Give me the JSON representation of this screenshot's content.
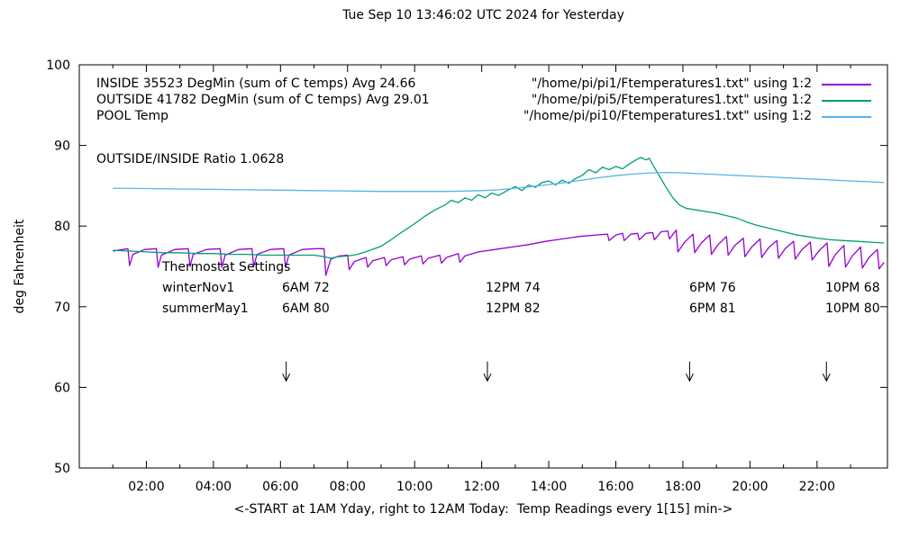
{
  "annotations": {
    "ratio": "OUTSIDE/INSIDE Ratio 1.0628"
  },
  "legend": {
    "rows": [
      {
        "label": "INSIDE 35523 DegMin (sum of C temps) Avg 24.66",
        "file": "\"/home/pi/pi1/Ftemperatures1.txt\" using 1:2",
        "color": "#9400d3"
      },
      {
        "label": "OUTSIDE 41782 DegMin (sum of C temps) Avg 29.01",
        "file": "\"/home/pi/pi5/Ftemperatures1.txt\" using 1:2",
        "color": "#009e73"
      },
      {
        "label": "POOL Temp",
        "file": "\"/home/pi/pi10/Ftemperatures1.txt\" using 1:2",
        "color": "#56b4e9"
      }
    ]
  },
  "thermostat": {
    "title": "Thermostat Settings",
    "rows": [
      {
        "name": "winterNov1",
        "settings": [
          "6AM 72",
          "12PM 74",
          "6PM 76",
          "10PM 68"
        ]
      },
      {
        "name": "summerMay1",
        "settings": [
          "6AM 80",
          "12PM 82",
          "6PM 81",
          "10PM 80"
        ]
      }
    ]
  },
  "chart_data": {
    "type": "line",
    "title": "Tue Sep 10 13:46:02 UTC 2024 for Yesterday",
    "xlabel": "<-START at 1AM Yday, right to 12AM Today:  Temp Readings every 1[15] min->",
    "ylabel": "deg Fahrenheit",
    "xlim": [
      0,
      24.1
    ],
    "ylim": [
      50,
      100
    ],
    "grid": false,
    "legend_position": "top-inside",
    "x_ticks": [
      {
        "value": 2,
        "label": "02:00"
      },
      {
        "value": 4,
        "label": "04:00"
      },
      {
        "value": 6,
        "label": "06:00"
      },
      {
        "value": 8,
        "label": "08:00"
      },
      {
        "value": 10,
        "label": "10:00"
      },
      {
        "value": 12,
        "label": "12:00"
      },
      {
        "value": 14,
        "label": "14:00"
      },
      {
        "value": 16,
        "label": "16:00"
      },
      {
        "value": 18,
        "label": "18:00"
      },
      {
        "value": 20,
        "label": "20:00"
      },
      {
        "value": 22,
        "label": "22:00"
      }
    ],
    "x_minor_ticks": [
      1,
      3,
      5,
      7,
      9,
      11,
      13,
      15,
      17,
      19,
      21,
      23
    ],
    "y_ticks": [
      {
        "value": 50,
        "label": "50"
      },
      {
        "value": 60,
        "label": "60"
      },
      {
        "value": 70,
        "label": "70"
      },
      {
        "value": 80,
        "label": "80"
      },
      {
        "value": 90,
        "label": "90"
      },
      {
        "value": 100,
        "label": "100"
      }
    ],
    "arrows": {
      "x": [
        6.17,
        12.17,
        18.2,
        22.28
      ],
      "from_f": 63.2,
      "to_f": 60.8
    },
    "series": [
      {
        "name": "INSIDE",
        "color": "#9400d3",
        "points": [
          [
            1.0,
            76.9
          ],
          [
            1.45,
            77.2
          ],
          [
            1.5,
            75.1
          ],
          [
            1.6,
            76.5
          ],
          [
            1.95,
            77.1
          ],
          [
            2.3,
            77.2
          ],
          [
            2.35,
            74.9
          ],
          [
            2.45,
            76.4
          ],
          [
            2.85,
            77.1
          ],
          [
            3.25,
            77.2
          ],
          [
            3.3,
            75.0
          ],
          [
            3.4,
            76.5
          ],
          [
            3.8,
            77.1
          ],
          [
            4.2,
            77.2
          ],
          [
            4.25,
            74.9
          ],
          [
            4.35,
            76.4
          ],
          [
            4.75,
            77.1
          ],
          [
            5.15,
            77.2
          ],
          [
            5.2,
            75.0
          ],
          [
            5.3,
            76.5
          ],
          [
            5.7,
            77.1
          ],
          [
            6.1,
            77.2
          ],
          [
            6.15,
            74.9
          ],
          [
            6.25,
            76.4
          ],
          [
            6.65,
            77.1
          ],
          [
            7.05,
            77.2
          ],
          [
            7.3,
            77.2
          ],
          [
            7.35,
            73.9
          ],
          [
            7.5,
            75.9
          ],
          [
            7.75,
            76.3
          ],
          [
            8.0,
            76.4
          ],
          [
            8.05,
            74.6
          ],
          [
            8.2,
            75.6
          ],
          [
            8.55,
            76.1
          ],
          [
            8.6,
            74.9
          ],
          [
            8.75,
            75.7
          ],
          [
            9.1,
            76.1
          ],
          [
            9.15,
            75.1
          ],
          [
            9.3,
            75.8
          ],
          [
            9.65,
            76.2
          ],
          [
            9.7,
            75.2
          ],
          [
            9.85,
            75.9
          ],
          [
            10.2,
            76.3
          ],
          [
            10.25,
            75.3
          ],
          [
            10.4,
            76.0
          ],
          [
            10.75,
            76.4
          ],
          [
            10.8,
            75.4
          ],
          [
            10.95,
            76.1
          ],
          [
            11.3,
            76.6
          ],
          [
            11.35,
            75.5
          ],
          [
            11.5,
            76.3
          ],
          [
            11.9,
            76.8
          ],
          [
            12.4,
            77.1
          ],
          [
            12.9,
            77.4
          ],
          [
            13.4,
            77.7
          ],
          [
            13.9,
            78.1
          ],
          [
            14.4,
            78.4
          ],
          [
            14.9,
            78.7
          ],
          [
            15.4,
            78.9
          ],
          [
            15.75,
            79.0
          ],
          [
            15.8,
            78.2
          ],
          [
            16.0,
            78.9
          ],
          [
            16.2,
            79.1
          ],
          [
            16.25,
            78.2
          ],
          [
            16.45,
            79.0
          ],
          [
            16.65,
            79.1
          ],
          [
            16.7,
            78.3
          ],
          [
            16.9,
            79.1
          ],
          [
            17.1,
            79.2
          ],
          [
            17.15,
            78.3
          ],
          [
            17.35,
            79.3
          ],
          [
            17.55,
            79.4
          ],
          [
            17.6,
            78.4
          ],
          [
            17.8,
            79.5
          ],
          [
            17.85,
            76.8
          ],
          [
            18.05,
            78.0
          ],
          [
            18.3,
            79.0
          ],
          [
            18.35,
            76.7
          ],
          [
            18.55,
            77.9
          ],
          [
            18.8,
            78.9
          ],
          [
            18.85,
            76.5
          ],
          [
            19.05,
            77.7
          ],
          [
            19.3,
            78.7
          ],
          [
            19.35,
            76.4
          ],
          [
            19.55,
            77.6
          ],
          [
            19.8,
            78.5
          ],
          [
            19.85,
            76.2
          ],
          [
            20.05,
            77.4
          ],
          [
            20.3,
            78.4
          ],
          [
            20.35,
            76.1
          ],
          [
            20.55,
            77.3
          ],
          [
            20.8,
            78.2
          ],
          [
            20.85,
            76.0
          ],
          [
            21.05,
            77.2
          ],
          [
            21.3,
            78.1
          ],
          [
            21.35,
            75.9
          ],
          [
            21.55,
            77.1
          ],
          [
            21.8,
            78.0
          ],
          [
            21.85,
            75.8
          ],
          [
            22.05,
            76.9
          ],
          [
            22.3,
            77.9
          ],
          [
            22.35,
            75.0
          ],
          [
            22.55,
            76.5
          ],
          [
            22.8,
            77.6
          ],
          [
            22.85,
            74.9
          ],
          [
            23.05,
            76.3
          ],
          [
            23.3,
            77.4
          ],
          [
            23.35,
            74.8
          ],
          [
            23.55,
            76.1
          ],
          [
            23.8,
            77.1
          ],
          [
            23.85,
            74.7
          ],
          [
            24.0,
            75.5
          ]
        ]
      },
      {
        "name": "OUTSIDE",
        "color": "#009e73",
        "points": [
          [
            1.0,
            77.0
          ],
          [
            1.5,
            76.9
          ],
          [
            2.0,
            76.8
          ],
          [
            2.5,
            76.7
          ],
          [
            3.0,
            76.7
          ],
          [
            3.5,
            76.6
          ],
          [
            4.0,
            76.6
          ],
          [
            4.5,
            76.5
          ],
          [
            5.0,
            76.5
          ],
          [
            5.5,
            76.4
          ],
          [
            6.0,
            76.4
          ],
          [
            6.5,
            76.4
          ],
          [
            7.0,
            76.4
          ],
          [
            7.3,
            76.2
          ],
          [
            7.5,
            76.0
          ],
          [
            7.7,
            76.2
          ],
          [
            8.0,
            76.3
          ],
          [
            8.3,
            76.5
          ],
          [
            8.6,
            76.9
          ],
          [
            9.0,
            77.5
          ],
          [
            9.3,
            78.3
          ],
          [
            9.6,
            79.2
          ],
          [
            10.0,
            80.3
          ],
          [
            10.3,
            81.2
          ],
          [
            10.6,
            82.0
          ],
          [
            10.9,
            82.6
          ],
          [
            11.1,
            83.2
          ],
          [
            11.3,
            82.9
          ],
          [
            11.5,
            83.5
          ],
          [
            11.7,
            83.2
          ],
          [
            11.9,
            83.9
          ],
          [
            12.1,
            83.5
          ],
          [
            12.3,
            84.1
          ],
          [
            12.5,
            83.8
          ],
          [
            12.8,
            84.5
          ],
          [
            13.0,
            84.9
          ],
          [
            13.2,
            84.4
          ],
          [
            13.4,
            85.1
          ],
          [
            13.6,
            84.8
          ],
          [
            13.8,
            85.4
          ],
          [
            14.0,
            85.6
          ],
          [
            14.2,
            85.1
          ],
          [
            14.4,
            85.7
          ],
          [
            14.6,
            85.3
          ],
          [
            14.8,
            85.9
          ],
          [
            15.0,
            86.3
          ],
          [
            15.2,
            87.0
          ],
          [
            15.4,
            86.6
          ],
          [
            15.6,
            87.3
          ],
          [
            15.8,
            87.0
          ],
          [
            16.0,
            87.4
          ],
          [
            16.2,
            87.1
          ],
          [
            16.4,
            87.7
          ],
          [
            16.6,
            88.2
          ],
          [
            16.75,
            88.5
          ],
          [
            16.9,
            88.2
          ],
          [
            17.0,
            88.4
          ],
          [
            17.1,
            87.6
          ],
          [
            17.3,
            86.2
          ],
          [
            17.5,
            84.8
          ],
          [
            17.7,
            83.5
          ],
          [
            17.9,
            82.6
          ],
          [
            18.1,
            82.2
          ],
          [
            18.4,
            82.0
          ],
          [
            18.7,
            81.8
          ],
          [
            19.0,
            81.6
          ],
          [
            19.3,
            81.3
          ],
          [
            19.6,
            81.0
          ],
          [
            19.9,
            80.5
          ],
          [
            20.2,
            80.1
          ],
          [
            20.5,
            79.8
          ],
          [
            20.8,
            79.5
          ],
          [
            21.1,
            79.2
          ],
          [
            21.4,
            78.9
          ],
          [
            21.7,
            78.7
          ],
          [
            22.0,
            78.5
          ],
          [
            22.4,
            78.3
          ],
          [
            22.8,
            78.2
          ],
          [
            23.2,
            78.1
          ],
          [
            23.6,
            78.0
          ],
          [
            24.0,
            77.9
          ]
        ]
      },
      {
        "name": "POOL",
        "color": "#56b4e9",
        "points": [
          [
            1.0,
            84.7
          ],
          [
            2.0,
            84.65
          ],
          [
            3.0,
            84.6
          ],
          [
            4.0,
            84.55
          ],
          [
            5.0,
            84.5
          ],
          [
            6.0,
            84.45
          ],
          [
            7.0,
            84.4
          ],
          [
            8.0,
            84.35
          ],
          [
            9.0,
            84.3
          ],
          [
            10.0,
            84.3
          ],
          [
            11.0,
            84.3
          ],
          [
            12.0,
            84.4
          ],
          [
            12.5,
            84.5
          ],
          [
            13.0,
            84.7
          ],
          [
            13.5,
            84.9
          ],
          [
            14.0,
            85.15
          ],
          [
            14.5,
            85.4
          ],
          [
            15.0,
            85.7
          ],
          [
            15.5,
            86.0
          ],
          [
            16.0,
            86.25
          ],
          [
            16.5,
            86.45
          ],
          [
            17.0,
            86.6
          ],
          [
            17.5,
            86.65
          ],
          [
            18.0,
            86.6
          ],
          [
            18.5,
            86.5
          ],
          [
            19.0,
            86.4
          ],
          [
            19.5,
            86.3
          ],
          [
            20.0,
            86.2
          ],
          [
            20.5,
            86.1
          ],
          [
            21.0,
            86.0
          ],
          [
            21.5,
            85.9
          ],
          [
            22.0,
            85.8
          ],
          [
            22.5,
            85.7
          ],
          [
            23.0,
            85.6
          ],
          [
            23.5,
            85.5
          ],
          [
            24.0,
            85.4
          ]
        ]
      }
    ]
  }
}
